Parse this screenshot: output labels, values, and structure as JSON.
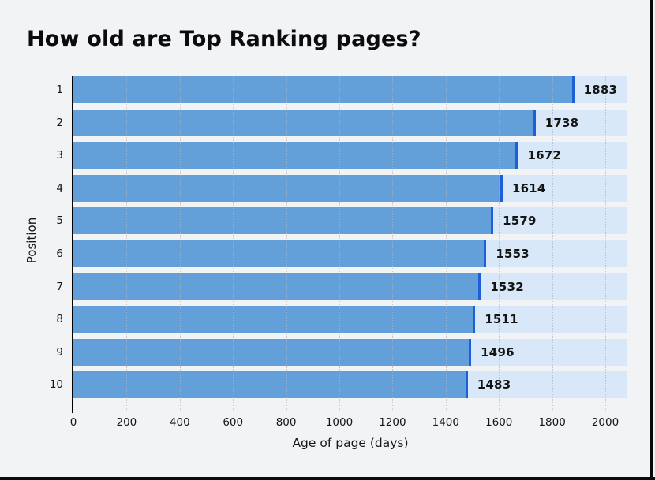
{
  "chart_data": {
    "type": "bar",
    "orientation": "horizontal",
    "title": "How old are Top Ranking pages?",
    "xlabel": "Age of page (days)",
    "ylabel": "Position",
    "categories": [
      "1",
      "2",
      "3",
      "4",
      "5",
      "6",
      "7",
      "8",
      "9",
      "10"
    ],
    "values": [
      1883,
      1738,
      1672,
      1614,
      1579,
      1553,
      1532,
      1511,
      1496,
      1483
    ],
    "x_ticks": [
      0,
      200,
      400,
      600,
      800,
      1000,
      1200,
      1400,
      1600,
      1800,
      2000
    ],
    "xlim": [
      0,
      2083
    ],
    "grid": "vertical-dotted",
    "legend": "none",
    "colors": {
      "bar": "#639fd8",
      "bar_cap": "#1d5ed9",
      "track": "#d9e8f8",
      "grid": "#aab3c0",
      "axis": "#000000",
      "text": "#141414",
      "background": "#f2f3f5"
    }
  }
}
